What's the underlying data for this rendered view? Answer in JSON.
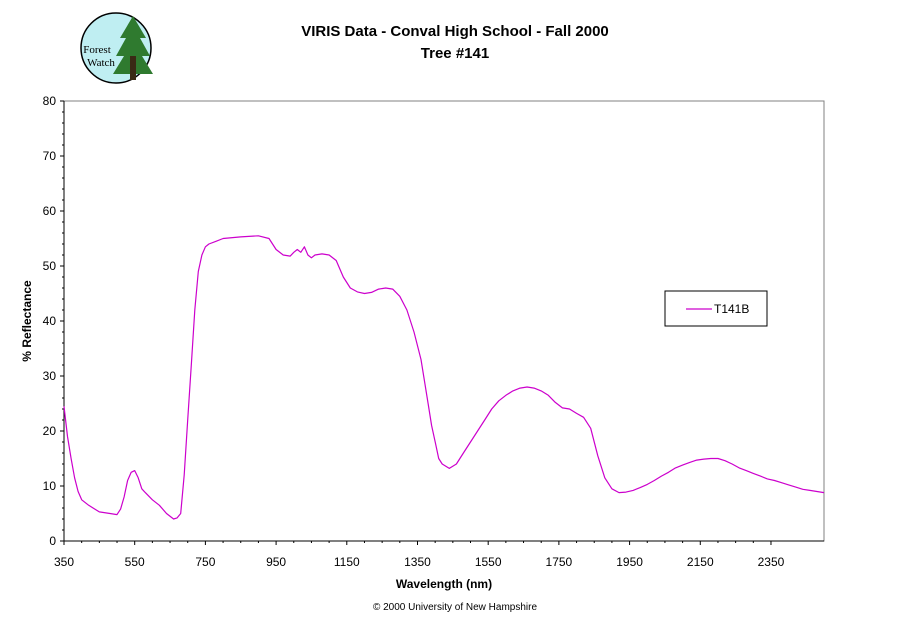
{
  "logo": {
    "line1": "Forest",
    "line2": "Watch"
  },
  "copyright": "© 2000 University of New Hampshire",
  "colors": {
    "series": "#cc00cc",
    "logo_bg": "#bfeef2",
    "logo_tree": "#2f7a2f"
  },
  "chart_data": {
    "type": "line",
    "title": "VIRIS Data - Conval High School - Fall 2000",
    "subtitle": "Tree #141",
    "xlabel": "Wavelength (nm)",
    "ylabel": "% Reflectance",
    "xlim": [
      350,
      2500
    ],
    "ylim": [
      0,
      80
    ],
    "x_ticks": [
      350,
      550,
      750,
      950,
      1150,
      1350,
      1550,
      1750,
      1950,
      2150,
      2350
    ],
    "y_ticks": [
      0,
      10,
      20,
      30,
      40,
      50,
      60,
      70,
      80
    ],
    "grid": false,
    "legend_position": "right",
    "series": [
      {
        "name": "T141B",
        "color": "#cc00cc",
        "x": [
          350,
          360,
          370,
          380,
          390,
          400,
          420,
          450,
          480,
          500,
          510,
          520,
          530,
          540,
          550,
          560,
          570,
          580,
          600,
          620,
          640,
          660,
          670,
          680,
          690,
          700,
          710,
          720,
          730,
          740,
          750,
          760,
          780,
          800,
          850,
          900,
          930,
          950,
          970,
          990,
          1000,
          1010,
          1020,
          1030,
          1040,
          1050,
          1060,
          1080,
          1100,
          1120,
          1140,
          1160,
          1180,
          1200,
          1220,
          1240,
          1260,
          1280,
          1300,
          1320,
          1340,
          1360,
          1380,
          1390,
          1400,
          1410,
          1420,
          1440,
          1460,
          1480,
          1500,
          1520,
          1540,
          1560,
          1580,
          1600,
          1620,
          1640,
          1660,
          1680,
          1700,
          1720,
          1740,
          1760,
          1780,
          1800,
          1820,
          1840,
          1860,
          1880,
          1900,
          1920,
          1940,
          1960,
          1980,
          2000,
          2020,
          2040,
          2060,
          2080,
          2100,
          2120,
          2140,
          2160,
          2180,
          2200,
          2220,
          2240,
          2260,
          2280,
          2300,
          2320,
          2340,
          2360,
          2380,
          2400,
          2420,
          2440,
          2460,
          2480,
          2500
        ],
        "y": [
          24.5,
          19.0,
          15.0,
          11.5,
          9.0,
          7.5,
          6.5,
          5.3,
          5.0,
          4.8,
          5.8,
          8.0,
          11.0,
          12.5,
          12.8,
          11.5,
          9.5,
          8.8,
          7.5,
          6.5,
          5.0,
          4.0,
          4.2,
          5.0,
          12.0,
          22.0,
          32.0,
          42.0,
          49.0,
          52.0,
          53.5,
          54.0,
          54.5,
          55.0,
          55.3,
          55.5,
          55.0,
          53.0,
          52.0,
          51.8,
          52.5,
          53.0,
          52.5,
          53.5,
          52.0,
          51.5,
          52.0,
          52.2,
          52.0,
          51.0,
          48.0,
          46.0,
          45.3,
          45.0,
          45.2,
          45.8,
          46.0,
          45.8,
          44.5,
          42.0,
          38.0,
          33.0,
          25.0,
          21.0,
          18.0,
          15.0,
          14.0,
          13.2,
          14.0,
          16.0,
          18.0,
          20.0,
          22.0,
          24.0,
          25.5,
          26.5,
          27.3,
          27.8,
          28.0,
          27.8,
          27.3,
          26.5,
          25.2,
          24.2,
          24.0,
          23.2,
          22.5,
          20.5,
          15.5,
          11.5,
          9.5,
          8.8,
          8.9,
          9.2,
          9.7,
          10.3,
          11.0,
          11.8,
          12.5,
          13.3,
          13.8,
          14.3,
          14.7,
          14.9,
          15.0,
          15.0,
          14.6,
          14.0,
          13.3,
          12.8,
          12.3,
          11.8,
          11.3,
          11.0,
          10.6,
          10.2,
          9.8,
          9.4,
          9.2,
          9.0,
          8.8
        ]
      }
    ]
  }
}
